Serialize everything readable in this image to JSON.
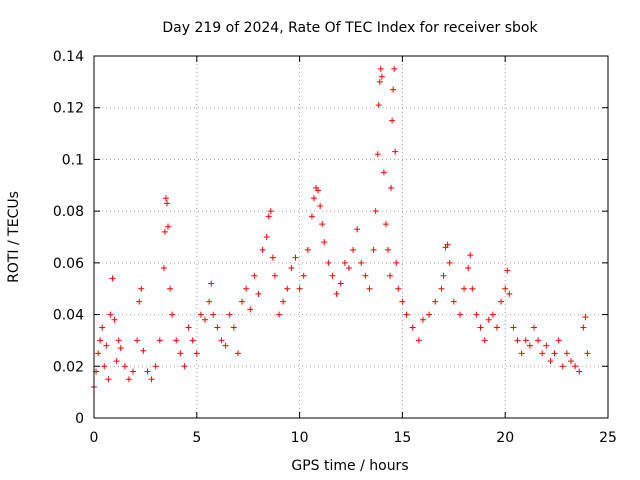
{
  "chart_data": {
    "type": "scatter",
    "title": "Day 219 of 2024, Rate Of TEC Index for receiver sbok",
    "xlabel": "GPS time / hours",
    "ylabel": "ROTI / TECUs",
    "xlim": [
      0,
      25
    ],
    "ylim": [
      0,
      0.14
    ],
    "xticks": [
      0,
      5,
      10,
      15,
      20,
      25
    ],
    "xtick_labels": [
      "0",
      "5",
      "10",
      "15",
      "20",
      "25"
    ],
    "yticks": [
      0,
      0.02,
      0.04,
      0.06,
      0.08,
      0.1,
      0.12,
      0.14
    ],
    "ytick_labels": [
      "0",
      "0.02",
      "0.04",
      "0.06",
      "0.08",
      "0.1",
      "0.12",
      "0.14"
    ],
    "grid": true,
    "marker": "+",
    "color": "#ff0000",
    "series": [
      {
        "points": [
          [
            0.0,
            0.012
          ],
          [
            0.1,
            0.018
          ],
          [
            0.2,
            0.025
          ],
          [
            0.3,
            0.03
          ],
          [
            0.4,
            0.035
          ],
          [
            0.5,
            0.02
          ],
          [
            0.6,
            0.028
          ],
          [
            0.7,
            0.015
          ],
          [
            0.8,
            0.04
          ],
          [
            0.9,
            0.054
          ],
          [
            1.0,
            0.038
          ],
          [
            1.1,
            0.022
          ],
          [
            1.2,
            0.03
          ],
          [
            1.3,
            0.027
          ],
          [
            1.5,
            0.02
          ],
          [
            1.7,
            0.015
          ],
          [
            1.9,
            0.018
          ],
          [
            2.1,
            0.03
          ],
          [
            2.2,
            0.045
          ],
          [
            2.3,
            0.05
          ],
          [
            2.4,
            0.026
          ],
          [
            2.6,
            0.018
          ],
          [
            2.8,
            0.015
          ],
          [
            3.0,
            0.02
          ],
          [
            3.2,
            0.03
          ],
          [
            3.4,
            0.058
          ],
          [
            3.45,
            0.072
          ],
          [
            3.5,
            0.085
          ],
          [
            3.55,
            0.083
          ],
          [
            3.6,
            0.074
          ],
          [
            3.7,
            0.05
          ],
          [
            3.8,
            0.04
          ],
          [
            4.0,
            0.03
          ],
          [
            4.2,
            0.025
          ],
          [
            4.4,
            0.02
          ],
          [
            4.6,
            0.035
          ],
          [
            4.8,
            0.03
          ],
          [
            5.0,
            0.025
          ],
          [
            5.2,
            0.04
          ],
          [
            5.4,
            0.038
          ],
          [
            5.6,
            0.045
          ],
          [
            5.7,
            0.052
          ],
          [
            5.8,
            0.04
          ],
          [
            6.0,
            0.035
          ],
          [
            6.2,
            0.03
          ],
          [
            6.4,
            0.028
          ],
          [
            6.6,
            0.04
          ],
          [
            6.8,
            0.035
          ],
          [
            7.0,
            0.025
          ],
          [
            7.2,
            0.045
          ],
          [
            7.4,
            0.05
          ],
          [
            7.6,
            0.042
          ],
          [
            7.8,
            0.055
          ],
          [
            8.0,
            0.048
          ],
          [
            8.2,
            0.065
          ],
          [
            8.4,
            0.07
          ],
          [
            8.5,
            0.078
          ],
          [
            8.6,
            0.08
          ],
          [
            8.7,
            0.062
          ],
          [
            8.8,
            0.055
          ],
          [
            9.0,
            0.04
          ],
          [
            9.2,
            0.045
          ],
          [
            9.4,
            0.05
          ],
          [
            9.6,
            0.058
          ],
          [
            9.8,
            0.062
          ],
          [
            10.0,
            0.05
          ],
          [
            10.2,
            0.055
          ],
          [
            10.4,
            0.065
          ],
          [
            10.6,
            0.078
          ],
          [
            10.7,
            0.085
          ],
          [
            10.8,
            0.089
          ],
          [
            10.9,
            0.088
          ],
          [
            11.0,
            0.082
          ],
          [
            11.1,
            0.075
          ],
          [
            11.2,
            0.068
          ],
          [
            11.4,
            0.06
          ],
          [
            11.6,
            0.055
          ],
          [
            11.8,
            0.048
          ],
          [
            12.0,
            0.052
          ],
          [
            12.2,
            0.06
          ],
          [
            12.4,
            0.058
          ],
          [
            12.6,
            0.065
          ],
          [
            12.8,
            0.073
          ],
          [
            13.0,
            0.06
          ],
          [
            13.2,
            0.055
          ],
          [
            13.4,
            0.05
          ],
          [
            13.6,
            0.065
          ],
          [
            13.7,
            0.08
          ],
          [
            13.8,
            0.102
          ],
          [
            13.85,
            0.121
          ],
          [
            13.9,
            0.13
          ],
          [
            13.95,
            0.135
          ],
          [
            14.0,
            0.132
          ],
          [
            14.1,
            0.095
          ],
          [
            14.2,
            0.075
          ],
          [
            14.3,
            0.065
          ],
          [
            14.4,
            0.055
          ],
          [
            14.45,
            0.089
          ],
          [
            14.5,
            0.115
          ],
          [
            14.55,
            0.127
          ],
          [
            14.6,
            0.135
          ],
          [
            14.65,
            0.103
          ],
          [
            14.7,
            0.06
          ],
          [
            14.8,
            0.05
          ],
          [
            15.0,
            0.045
          ],
          [
            15.2,
            0.04
          ],
          [
            15.5,
            0.035
          ],
          [
            15.8,
            0.03
          ],
          [
            16.0,
            0.038
          ],
          [
            16.3,
            0.04
          ],
          [
            16.6,
            0.045
          ],
          [
            16.9,
            0.05
          ],
          [
            17.0,
            0.055
          ],
          [
            17.1,
            0.066
          ],
          [
            17.2,
            0.067
          ],
          [
            17.3,
            0.06
          ],
          [
            17.5,
            0.045
          ],
          [
            17.8,
            0.04
          ],
          [
            18.0,
            0.05
          ],
          [
            18.2,
            0.058
          ],
          [
            18.3,
            0.063
          ],
          [
            18.4,
            0.05
          ],
          [
            18.6,
            0.04
          ],
          [
            18.8,
            0.035
          ],
          [
            19.0,
            0.03
          ],
          [
            19.2,
            0.038
          ],
          [
            19.4,
            0.04
          ],
          [
            19.6,
            0.035
          ],
          [
            19.8,
            0.045
          ],
          [
            20.0,
            0.05
          ],
          [
            20.1,
            0.057
          ],
          [
            20.2,
            0.048
          ],
          [
            20.4,
            0.035
          ],
          [
            20.6,
            0.03
          ],
          [
            20.8,
            0.025
          ],
          [
            21.0,
            0.03
          ],
          [
            21.2,
            0.028
          ],
          [
            21.4,
            0.035
          ],
          [
            21.6,
            0.03
          ],
          [
            21.8,
            0.025
          ],
          [
            22.0,
            0.028
          ],
          [
            22.2,
            0.022
          ],
          [
            22.4,
            0.025
          ],
          [
            22.6,
            0.03
          ],
          [
            22.8,
            0.02
          ],
          [
            23.0,
            0.025
          ],
          [
            23.2,
            0.022
          ],
          [
            23.4,
            0.02
          ],
          [
            23.6,
            0.018
          ],
          [
            23.8,
            0.035
          ],
          [
            23.9,
            0.039
          ],
          [
            24.0,
            0.025
          ]
        ]
      }
    ]
  }
}
